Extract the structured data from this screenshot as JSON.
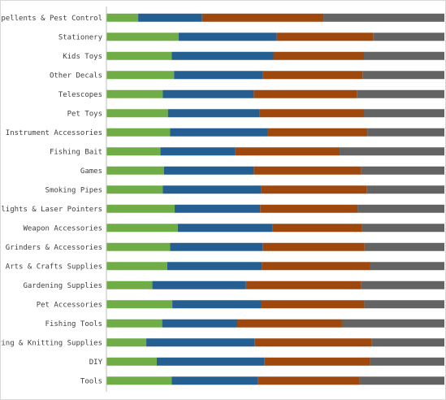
{
  "chart_data": {
    "type": "bar",
    "orientation": "horizontal",
    "stacked": true,
    "normalized": true,
    "grid": false,
    "legend": "none",
    "title": "",
    "xlabel": "",
    "ylabel": "",
    "xlim": [
      0,
      1
    ],
    "categories": [
      "Bug Repellents & Pest Control",
      "Stationery",
      "Kids Toys",
      "Other Decals",
      "Telescopes",
      "Pet Toys",
      "Musical Instrument Accessories",
      "Fishing Bait",
      "Games",
      "Smoking Pipes",
      "Flashlights & Laser Pointers",
      "Weapon Accessories",
      "Tobacco Grinders & Accessories",
      "Arts & Crafts Supplies",
      "Gardening Supplies",
      "Pet Accessories",
      "Fishing Tools",
      "Sewing & Knitting Supplies",
      "DIY",
      "Tools"
    ],
    "series": [
      {
        "color": "#70ad47",
        "values": [
          0.094,
          0.214,
          0.193,
          0.2,
          0.167,
          0.182,
          0.188,
          0.16,
          0.17,
          0.167,
          0.202,
          0.211,
          0.188,
          0.18,
          0.136,
          0.195,
          0.165,
          0.118,
          0.149,
          0.193
        ]
      },
      {
        "color": "#255e91",
        "values": [
          0.189,
          0.29,
          0.301,
          0.263,
          0.269,
          0.272,
          0.288,
          0.22,
          0.266,
          0.29,
          0.253,
          0.281,
          0.274,
          0.28,
          0.277,
          0.263,
          0.222,
          0.32,
          0.318,
          0.256
        ]
      },
      {
        "color": "#9e480e",
        "values": [
          0.359,
          0.285,
          0.268,
          0.295,
          0.305,
          0.308,
          0.296,
          0.31,
          0.318,
          0.313,
          0.288,
          0.265,
          0.302,
          0.32,
          0.341,
          0.305,
          0.31,
          0.346,
          0.312,
          0.3
        ]
      },
      {
        "color": "#636363",
        "values": [
          0.358,
          0.211,
          0.238,
          0.242,
          0.259,
          0.238,
          0.228,
          0.31,
          0.246,
          0.23,
          0.257,
          0.243,
          0.236,
          0.22,
          0.246,
          0.237,
          0.303,
          0.216,
          0.221,
          0.251
        ]
      }
    ]
  }
}
